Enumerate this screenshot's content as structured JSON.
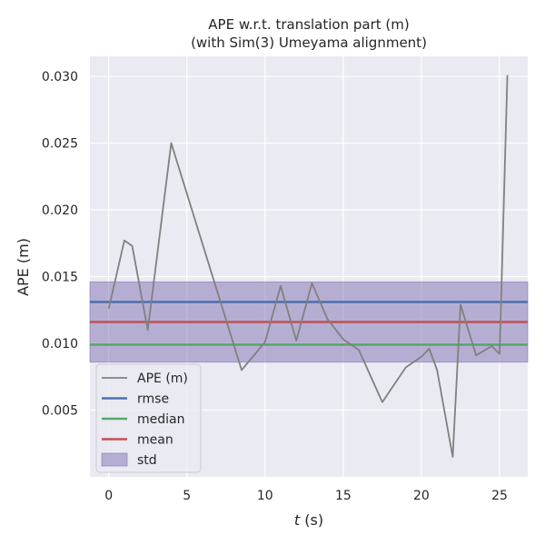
{
  "chart_data": {
    "type": "line",
    "title": "APE w.r.t. translation part (m)",
    "subtitle": "(with Sim(3) Umeyama alignment)",
    "xlabel_italic": "t",
    "xlabel_rest": " (s)",
    "ylabel": "APE (m)",
    "xlim": [
      -1.2,
      26.8
    ],
    "ylim": [
      0.0,
      0.0315
    ],
    "xticks": [
      0,
      5,
      10,
      15,
      20,
      25
    ],
    "xtick_labels": [
      "0",
      "5",
      "10",
      "15",
      "20",
      "25"
    ],
    "yticks": [
      0.005,
      0.01,
      0.015,
      0.02,
      0.025,
      0.03
    ],
    "ytick_labels": [
      "0.005",
      "0.010",
      "0.015",
      "0.020",
      "0.025",
      "0.030"
    ],
    "grid": true,
    "legend_position": "lower-left",
    "series": [
      {
        "name": "APE (m)",
        "color": "#808080",
        "x": [
          0.0,
          1.0,
          1.5,
          2.5,
          4.0,
          8.5,
          10.0,
          11.0,
          12.0,
          13.0,
          14.0,
          15.0,
          16.0,
          17.5,
          19.0,
          20.0,
          20.5,
          21.0,
          22.0,
          22.5,
          23.5,
          24.5,
          25.0,
          25.5
        ],
        "y": [
          0.0126,
          0.0177,
          0.0173,
          0.011,
          0.025,
          0.008,
          0.0101,
          0.0143,
          0.0102,
          0.0145,
          0.0118,
          0.0103,
          0.0095,
          0.0056,
          0.0082,
          0.009,
          0.0096,
          0.008,
          0.0015,
          0.0129,
          0.0091,
          0.0098,
          0.0092,
          0.0301
        ]
      }
    ],
    "stats": [
      {
        "name": "rmse",
        "value": 0.0131,
        "color": "#4c72b0"
      },
      {
        "name": "median",
        "value": 0.0099,
        "color": "#55a868"
      },
      {
        "name": "mean",
        "value": 0.0116,
        "color": "#c44e52"
      }
    ],
    "std_band": {
      "name": "std",
      "low": 0.0086,
      "high": 0.0146,
      "color": "#8172b2"
    }
  }
}
